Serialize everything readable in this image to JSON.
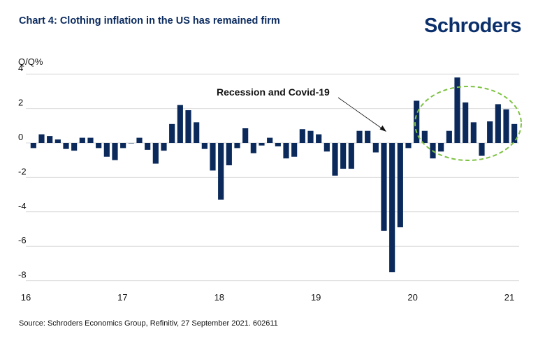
{
  "title": "Chart 4: Clothing inflation in the US has remained firm",
  "brand": "Schroders",
  "source": "Source: Schroders Economics Group, Refinitiv, 27 September 2021. 602611",
  "colors": {
    "bar": "#0b2a5b",
    "grid": "#d9d9d9",
    "ellipse": "#7dc242",
    "title": "#0a2a5e"
  },
  "chart_data": {
    "type": "bar",
    "ylabel": "Q/Q%",
    "ylim": [
      -8,
      4
    ],
    "y_ticks": [
      4,
      2,
      0,
      -2,
      -4,
      -6,
      -8
    ],
    "x_ticks": [
      "16",
      "17",
      "18",
      "19",
      "20",
      "21"
    ],
    "grid": "horizontal",
    "annotation": "Recession and Covid-19",
    "values": [
      -0.3,
      0.5,
      0.4,
      0.2,
      -0.35,
      -0.45,
      0.3,
      0.3,
      -0.3,
      -0.8,
      -1.0,
      -0.3,
      0.0,
      0.3,
      -0.4,
      -1.2,
      -0.45,
      1.1,
      2.2,
      1.9,
      1.2,
      -0.35,
      -1.6,
      -3.3,
      -1.3,
      -0.3,
      0.85,
      -0.6,
      -0.15,
      0.3,
      -0.2,
      -0.9,
      -0.8,
      0.8,
      0.7,
      0.5,
      -0.5,
      -1.9,
      -1.5,
      -1.5,
      0.7,
      0.7,
      -0.55,
      -5.1,
      -7.5,
      -4.9,
      -0.3,
      2.45,
      0.7,
      -0.9,
      -0.5,
      0.7,
      3.8,
      2.35,
      1.2,
      -0.75,
      1.25,
      2.25,
      1.95,
      1.1
    ]
  }
}
